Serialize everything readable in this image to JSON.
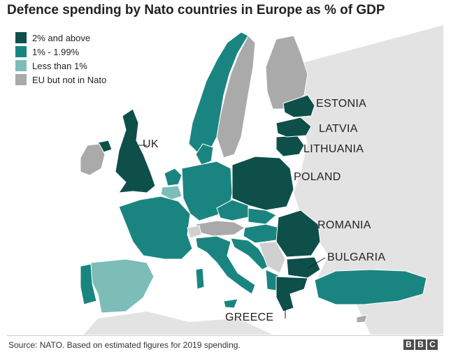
{
  "title": "Defence spending by Nato countries in Europe as % of GDP",
  "legend": [
    {
      "label": "2% and above",
      "color": "#0e4f4a"
    },
    {
      "label": "1% - 1.99%",
      "color": "#1a8580"
    },
    {
      "label": "Less than 1%",
      "color": "#7dbdb8"
    },
    {
      "label": "EU but not in Nato",
      "color": "#aaaaaa"
    }
  ],
  "labels": {
    "estonia": "ESTONIA",
    "latvia": "LATVIA",
    "lithuania": "LITHUANIA",
    "poland": "POLAND",
    "uk": "UK",
    "romania": "ROMANIA",
    "bulgaria": "BULGARIA",
    "greece": "GREECE"
  },
  "colors": {
    "sea": "#ffffff",
    "land_other": "#d9d9d9",
    "border": "#ffffff"
  },
  "source": "Source: NATO. Based on estimated figures for 2019 spending.",
  "logo": [
    "B",
    "B",
    "C"
  ]
}
